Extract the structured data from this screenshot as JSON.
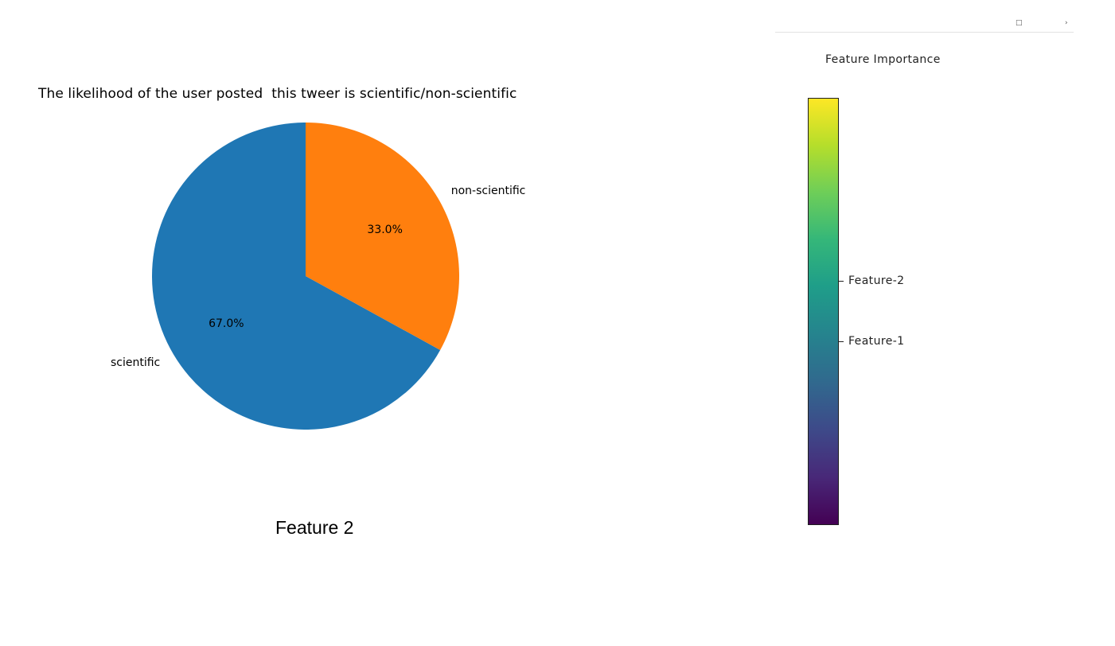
{
  "pie_title": "The likelihood of the user posted  this tweer is scientific/non-scientific",
  "caption": "Feature 2",
  "colorbar": {
    "title": "Feature Importance",
    "colormap": "viridis",
    "ticks": [
      {
        "label": "Feature-2"
      },
      {
        "label": "Feature-1"
      }
    ]
  },
  "chart_data": [
    {
      "type": "pie",
      "title": "The likelihood of the user posted  this tweer is scientific/non-scientific",
      "start_angle_deg": 90,
      "direction": "counterclockwise",
      "slices": [
        {
          "label": "scientific",
          "value": 67.0,
          "pct_label": "67.0%",
          "color": "#1f77b4"
        },
        {
          "label": "non-scientific",
          "value": 33.0,
          "pct_label": "33.0%",
          "color": "#ff7f0e"
        }
      ]
    }
  ]
}
